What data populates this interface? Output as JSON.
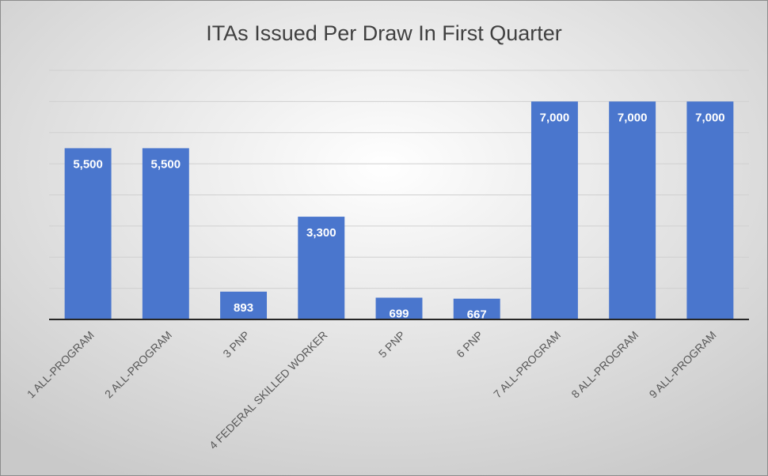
{
  "chart_data": {
    "type": "bar",
    "title": "ITAs Issued Per Draw In First Quarter",
    "categories": [
      "1 ALL-PROGRAM",
      "2 ALL-PROGRAM",
      "3 PNP",
      "4 FEDERAL SKILLED WORKER",
      "5 PNP",
      "6 PNP",
      "7 ALL-PROGRAM",
      "8 ALL-PROGRAM",
      "9 ALL-PROGRAM"
    ],
    "values": [
      5500,
      5500,
      893,
      3300,
      699,
      667,
      7000,
      7000,
      7000
    ],
    "value_labels": [
      "5,500",
      "5,500",
      "893",
      "3,300",
      "699",
      "667",
      "7,000",
      "7,000",
      "7,000"
    ],
    "color": "#4a76cd",
    "ylim": [
      0,
      8000
    ],
    "yticks": [
      0,
      1000,
      2000,
      3000,
      4000,
      5000,
      6000,
      7000,
      8000
    ],
    "grid": true
  }
}
